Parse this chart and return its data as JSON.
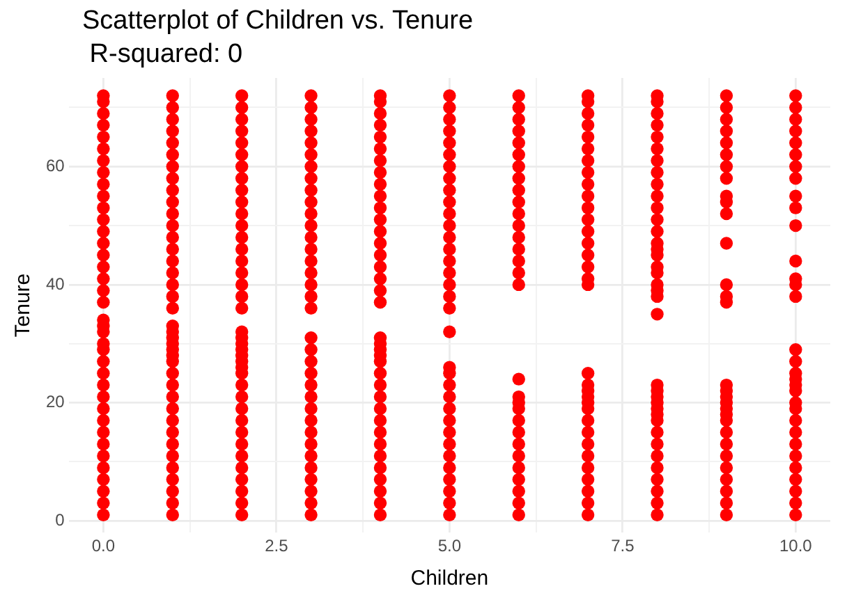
{
  "chart_data": {
    "type": "scatter",
    "title": "Scatterplot of Children vs. Tenure",
    "subtitle": " R-squared: 0",
    "xlabel": "Children",
    "ylabel": "Tenure",
    "xlim": [
      -0.5,
      10.5
    ],
    "ylim": [
      -2,
      75
    ],
    "xticks": [
      {
        "value": 0,
        "label": "0.0"
      },
      {
        "value": 1.25,
        "label": null
      },
      {
        "value": 2.5,
        "label": "2.5"
      },
      {
        "value": 3.75,
        "label": null
      },
      {
        "value": 5,
        "label": "5.0"
      },
      {
        "value": 6.25,
        "label": null
      },
      {
        "value": 7.5,
        "label": "7.5"
      },
      {
        "value": 8.75,
        "label": null
      },
      {
        "value": 10,
        "label": "10.0"
      }
    ],
    "yticks": [
      0,
      {
        "value": 10,
        "label": null
      },
      20,
      {
        "value": 30,
        "label": null
      },
      40,
      {
        "value": 50,
        "label": null
      },
      60,
      {
        "value": 70,
        "label": null
      }
    ],
    "grid": true,
    "legend": false,
    "marker": "circle",
    "series": [
      {
        "color": "#ff0000",
        "x": [
          0,
          0,
          0,
          0,
          0,
          0,
          0,
          0,
          0,
          0,
          0,
          0,
          0,
          0,
          0,
          0,
          0,
          0,
          0,
          0,
          0,
          0,
          0,
          0,
          0,
          0,
          0,
          0,
          0,
          0,
          0,
          0,
          0,
          0,
          0,
          0,
          0,
          0
        ],
        "values": [
          1,
          3,
          5,
          7,
          9,
          11,
          13,
          15,
          17,
          19,
          21,
          23,
          25,
          27,
          29,
          30,
          32,
          33,
          34,
          37,
          39,
          41,
          43,
          45,
          47,
          49,
          51,
          53,
          55,
          57,
          59,
          61,
          63,
          65,
          67,
          69,
          71,
          72
        ]
      },
      {
        "color": "#ff0000",
        "x": [
          1,
          1,
          1,
          1,
          1,
          1,
          1,
          1,
          1,
          1,
          1,
          1,
          1,
          1,
          1,
          1,
          1,
          1,
          1,
          1,
          1,
          1,
          1,
          1,
          1,
          1,
          1,
          1,
          1,
          1,
          1,
          1,
          1,
          1,
          1,
          1,
          1,
          1,
          1
        ],
        "values": [
          1,
          3,
          5,
          7,
          9,
          11,
          13,
          15,
          17,
          19,
          21,
          23,
          25,
          27,
          28,
          29,
          30,
          31,
          32,
          33,
          36,
          38,
          40,
          42,
          44,
          46,
          48,
          50,
          52,
          54,
          56,
          58,
          60,
          62,
          64,
          66,
          68,
          70,
          72
        ]
      },
      {
        "color": "#ff0000",
        "x": [
          2,
          2,
          2,
          2,
          2,
          2,
          2,
          2,
          2,
          2,
          2,
          2,
          2,
          2,
          2,
          2,
          2,
          2,
          2,
          2,
          2,
          2,
          2,
          2,
          2,
          2,
          2,
          2,
          2,
          2,
          2,
          2,
          2,
          2,
          2,
          2,
          2,
          2,
          2
        ],
        "values": [
          1,
          3,
          5,
          7,
          9,
          11,
          13,
          15,
          17,
          19,
          21,
          23,
          25,
          26,
          27,
          28,
          29,
          30,
          31,
          32,
          36,
          38,
          40,
          42,
          44,
          46,
          48,
          50,
          52,
          54,
          56,
          58,
          60,
          62,
          64,
          66,
          68,
          70,
          72
        ]
      },
      {
        "color": "#ff0000",
        "x": [
          3,
          3,
          3,
          3,
          3,
          3,
          3,
          3,
          3,
          3,
          3,
          3,
          3,
          3,
          3,
          3,
          3,
          3,
          3,
          3,
          3,
          3,
          3,
          3,
          3,
          3,
          3,
          3,
          3,
          3,
          3,
          3,
          3,
          3,
          3
        ],
        "values": [
          1,
          3,
          5,
          7,
          9,
          11,
          13,
          15,
          17,
          19,
          21,
          23,
          25,
          27,
          29,
          31,
          36,
          38,
          40,
          42,
          44,
          46,
          48,
          50,
          52,
          54,
          56,
          58,
          60,
          62,
          64,
          66,
          68,
          70,
          72
        ]
      },
      {
        "color": "#ff0000",
        "x": [
          4,
          4,
          4,
          4,
          4,
          4,
          4,
          4,
          4,
          4,
          4,
          4,
          4,
          4,
          4,
          4,
          4,
          4,
          4,
          4,
          4,
          4,
          4,
          4,
          4,
          4,
          4,
          4,
          4,
          4,
          4,
          4,
          4,
          4,
          4,
          4,
          4
        ],
        "values": [
          1,
          3,
          5,
          7,
          9,
          11,
          13,
          15,
          17,
          19,
          21,
          23,
          25,
          27,
          28,
          29,
          30,
          31,
          37,
          39,
          41,
          43,
          45,
          47,
          49,
          51,
          53,
          55,
          57,
          59,
          61,
          63,
          65,
          67,
          69,
          71,
          72
        ]
      },
      {
        "color": "#ff0000",
        "x": [
          5,
          5,
          5,
          5,
          5,
          5,
          5,
          5,
          5,
          5,
          5,
          5,
          5,
          5,
          5,
          5,
          5,
          5,
          5,
          5,
          5,
          5,
          5,
          5,
          5,
          5,
          5,
          5,
          5,
          5,
          5,
          5,
          5,
          5
        ],
        "values": [
          1,
          3,
          5,
          7,
          9,
          11,
          13,
          15,
          17,
          19,
          21,
          23,
          25,
          26,
          32,
          36,
          38,
          40,
          42,
          44,
          46,
          48,
          50,
          52,
          54,
          56,
          58,
          60,
          62,
          64,
          66,
          68,
          70,
          72
        ]
      },
      {
        "color": "#ff0000",
        "x": [
          6,
          6,
          6,
          6,
          6,
          6,
          6,
          6,
          6,
          6,
          6,
          6,
          6,
          6,
          6,
          6,
          6,
          6,
          6,
          6,
          6,
          6,
          6,
          6,
          6,
          6,
          6,
          6,
          6,
          6
        ],
        "values": [
          1,
          3,
          5,
          7,
          9,
          11,
          13,
          15,
          17,
          19,
          20,
          21,
          24,
          40,
          42,
          44,
          46,
          48,
          50,
          52,
          54,
          56,
          58,
          60,
          62,
          64,
          66,
          68,
          70,
          72
        ]
      },
      {
        "color": "#ff0000",
        "x": [
          7,
          7,
          7,
          7,
          7,
          7,
          7,
          7,
          7,
          7,
          7,
          7,
          7,
          7,
          7,
          7,
          7,
          7,
          7,
          7,
          7,
          7,
          7,
          7,
          7,
          7,
          7,
          7,
          7,
          7,
          7,
          7,
          7
        ],
        "values": [
          1,
          3,
          5,
          7,
          9,
          11,
          13,
          15,
          17,
          19,
          20,
          21,
          22,
          23,
          25,
          40,
          41,
          43,
          45,
          47,
          49,
          51,
          53,
          55,
          57,
          59,
          61,
          63,
          65,
          67,
          69,
          71,
          72
        ]
      },
      {
        "color": "#ff0000",
        "x": [
          8,
          8,
          8,
          8,
          8,
          8,
          8,
          8,
          8,
          8,
          8,
          8,
          8,
          8,
          8,
          8,
          8,
          8,
          8,
          8,
          8,
          8,
          8,
          8,
          8,
          8,
          8,
          8,
          8,
          8,
          8,
          8,
          8,
          8,
          8,
          8,
          8
        ],
        "values": [
          1,
          3,
          5,
          7,
          9,
          11,
          13,
          15,
          17,
          18,
          19,
          20,
          21,
          22,
          23,
          35,
          38,
          39,
          40,
          42,
          43,
          45,
          46,
          47,
          49,
          51,
          53,
          55,
          57,
          59,
          61,
          63,
          65,
          67,
          69,
          71,
          72
        ]
      },
      {
        "color": "#ff0000",
        "x": [
          9,
          9,
          9,
          9,
          9,
          9,
          9,
          9,
          9,
          9,
          9,
          9,
          9,
          9,
          9,
          9,
          9,
          9,
          9,
          9,
          9,
          9,
          9,
          9,
          9,
          9,
          9,
          9,
          9,
          9
        ],
        "values": [
          1,
          3,
          5,
          7,
          9,
          11,
          13,
          15,
          17,
          18,
          19,
          20,
          21,
          22,
          23,
          37,
          38,
          40,
          47,
          52,
          54,
          55,
          58,
          60,
          62,
          64,
          66,
          68,
          70,
          72
        ]
      },
      {
        "color": "#ff0000",
        "x": [
          10,
          10,
          10,
          10,
          10,
          10,
          10,
          10,
          10,
          10,
          10,
          10,
          10,
          10,
          10,
          10,
          10,
          10,
          10,
          10,
          10,
          10,
          10,
          10,
          10,
          10,
          10,
          10,
          10,
          10,
          10,
          10
        ],
        "values": [
          1,
          3,
          5,
          7,
          9,
          11,
          13,
          15,
          17,
          19,
          20,
          22,
          23,
          24,
          25,
          27,
          29,
          38,
          40,
          41,
          44,
          50,
          53,
          55,
          58,
          60,
          62,
          64,
          66,
          68,
          70,
          72
        ]
      }
    ]
  }
}
